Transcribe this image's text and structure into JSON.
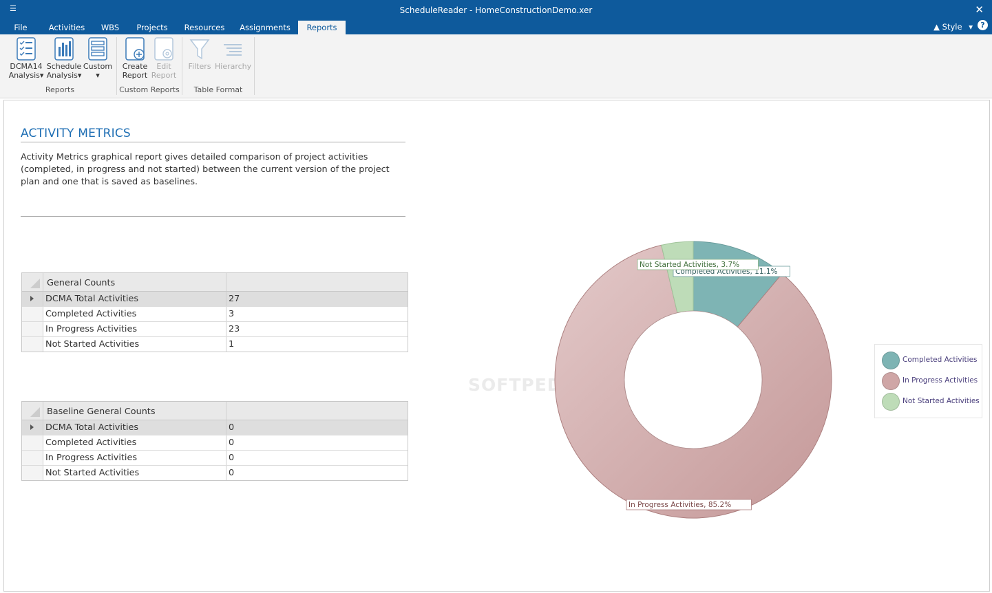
{
  "window": {
    "title": "ScheduleReader - HomeConstructionDemo.xer",
    "close_glyph": "✕",
    "quick_access_glyph": "☰"
  },
  "menu": {
    "tabs": [
      "File",
      "Activities",
      "WBS",
      "Projects",
      "Resources",
      "Assignments",
      "Reports"
    ],
    "active_tab": "Reports",
    "style_label": "Style",
    "help_label": "?"
  },
  "ribbon": {
    "dcma_line1": "DCMA14",
    "dcma_line2": "Analysis",
    "schedule_line1": "Schedule",
    "schedule_line2": "Analysis",
    "custom_label": "Custom",
    "create_line1": "Create",
    "create_line2": "Report",
    "edit_line1": "Edit",
    "edit_line2": "Report",
    "filters_label": "Filters",
    "hierarchy_label": "Hierarchy",
    "group_reports": "Reports",
    "group_custom_reports": "Custom Reports",
    "group_table_format": "Table Format",
    "dropdown_glyph": "▾"
  },
  "report": {
    "heading": "ACTIVITY METRICS",
    "description": "Activity Metrics graphical report gives detailed comparison of project activities (completed, in progress and not started) between the current version of the project plan and one that is saved as baselines."
  },
  "general_counts": {
    "header": "General Counts",
    "rows": [
      {
        "label": "DCMA Total Activities",
        "value": "27"
      },
      {
        "label": "Completed Activities",
        "value": "3"
      },
      {
        "label": "In Progress Activities",
        "value": "23"
      },
      {
        "label": "Not Started Activities",
        "value": "1"
      }
    ]
  },
  "baseline_counts": {
    "header": "Baseline General Counts",
    "rows": [
      {
        "label": "DCMA Total Activities",
        "value": "0"
      },
      {
        "label": "Completed Activities",
        "value": "0"
      },
      {
        "label": "In Progress Activities",
        "value": "0"
      },
      {
        "label": "Not Started Activities",
        "value": "0"
      }
    ]
  },
  "watermark": "SOFTPEDIA®",
  "chart_data": {
    "type": "pie",
    "variant": "donut",
    "title": "",
    "slices": [
      {
        "name": "Completed Activities",
        "value": 11.1,
        "label": "Completed Activities, 11.1%",
        "color": "#7eb4b4"
      },
      {
        "name": "In Progress Activities",
        "value": 85.2,
        "label": "In Progress Activities, 85.2%",
        "color": "#cfa6a6"
      },
      {
        "name": "Not Started Activities",
        "value": 3.7,
        "label": "Not Started Activities, 3.7%",
        "color": "#bedcb8"
      }
    ],
    "legend": {
      "position": "right",
      "entries": [
        "Completed Activities",
        "In Progress Activities",
        "Not Started Activities"
      ]
    }
  }
}
